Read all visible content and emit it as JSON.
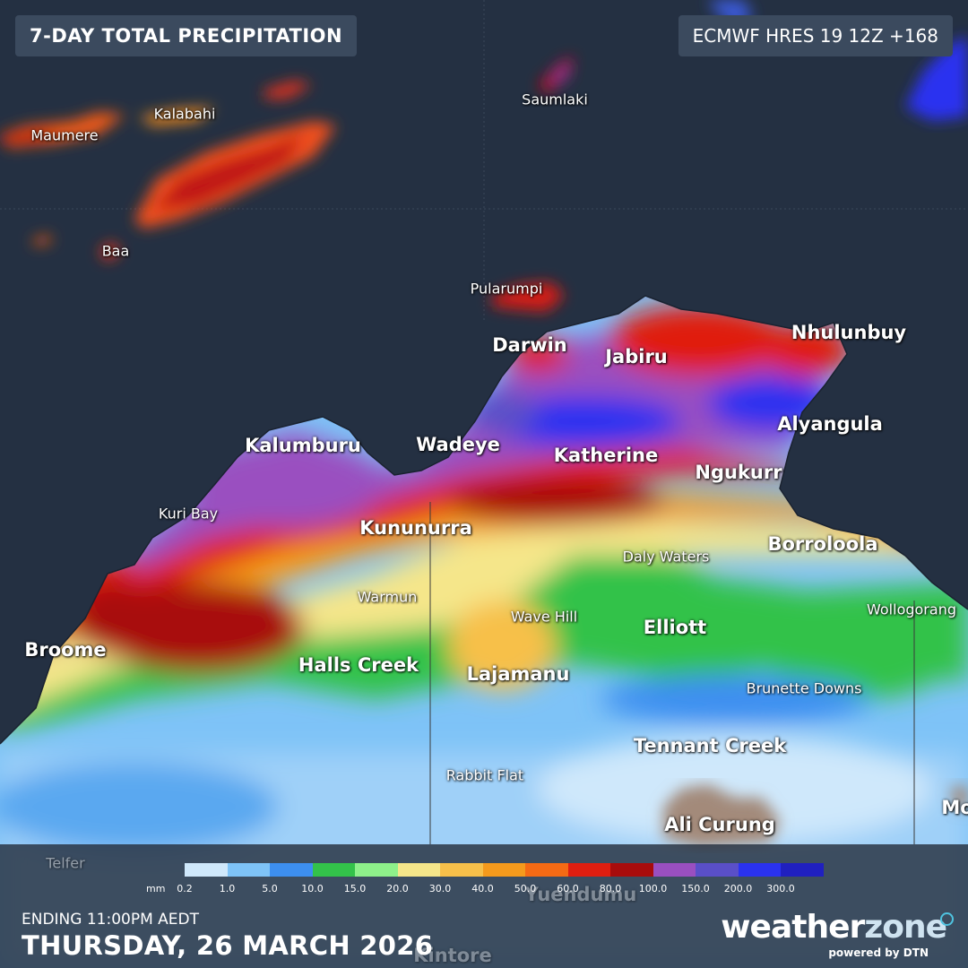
{
  "header": {
    "title": "7-DAY TOTAL PRECIPITATION",
    "model_run": "ECMWF HRES 19 12Z +168"
  },
  "places": [
    {
      "name": "Maumere",
      "size": "small"
    },
    {
      "name": "Kalabahi",
      "size": "small"
    },
    {
      "name": "Saumlaki",
      "size": "small"
    },
    {
      "name": "Baa",
      "size": "small"
    },
    {
      "name": "Pularumpi",
      "size": "small"
    },
    {
      "name": "Darwin",
      "size": "large"
    },
    {
      "name": "Jabiru",
      "size": "large"
    },
    {
      "name": "Nhulunbuy",
      "size": "large"
    },
    {
      "name": "Alyangula",
      "size": "large"
    },
    {
      "name": "Kalumburu",
      "size": "large"
    },
    {
      "name": "Wadeye",
      "size": "large"
    },
    {
      "name": "Katherine",
      "size": "large"
    },
    {
      "name": "Ngukurr",
      "size": "large"
    },
    {
      "name": "Kuri Bay",
      "size": "small"
    },
    {
      "name": "Kununurra",
      "size": "large"
    },
    {
      "name": "Daly Waters",
      "size": "small"
    },
    {
      "name": "Borroloola",
      "size": "large"
    },
    {
      "name": "Warmun",
      "size": "small"
    },
    {
      "name": "Wave Hill",
      "size": "small"
    },
    {
      "name": "Elliott",
      "size": "large"
    },
    {
      "name": "Wollogorang",
      "size": "small"
    },
    {
      "name": "Broome",
      "size": "large"
    },
    {
      "name": "Halls Creek",
      "size": "large"
    },
    {
      "name": "Lajamanu",
      "size": "large"
    },
    {
      "name": "Brunette Downs",
      "size": "small"
    },
    {
      "name": "Tennant Creek",
      "size": "large"
    },
    {
      "name": "Rabbit Flat",
      "size": "small"
    },
    {
      "name": "Ali Curung",
      "size": "large"
    },
    {
      "name": "Mo",
      "size": "large"
    },
    {
      "name": "Telfer",
      "size": "small"
    },
    {
      "name": "Yuendumu",
      "size": "large"
    },
    {
      "name": "Kintore",
      "size": "large"
    }
  ],
  "legend": {
    "unit": "mm",
    "ticks": [
      "0.2",
      "1.0",
      "5.0",
      "10.0",
      "15.0",
      "20.0",
      "30.0",
      "40.0",
      "50.0",
      "60.0",
      "80.0",
      "100.0",
      "150.0",
      "200.0",
      "300.0"
    ],
    "colors": [
      "#cfe8fb",
      "#7ec3f7",
      "#3d8ff0",
      "#33c24a",
      "#8ef08a",
      "#f5e68a",
      "#f7c04a",
      "#f59a1c",
      "#f56a14",
      "#e01e10",
      "#a80c0c",
      "#9a4fc0",
      "#5a4fc8",
      "#2a32f0",
      "#2020c0"
    ]
  },
  "footer": {
    "ending": "ENDING 11:00PM AEDT",
    "date": "THURSDAY, 26 MARCH 2026",
    "brand_a": "weather",
    "brand_b": "zone",
    "powered": "powered by DTN"
  }
}
